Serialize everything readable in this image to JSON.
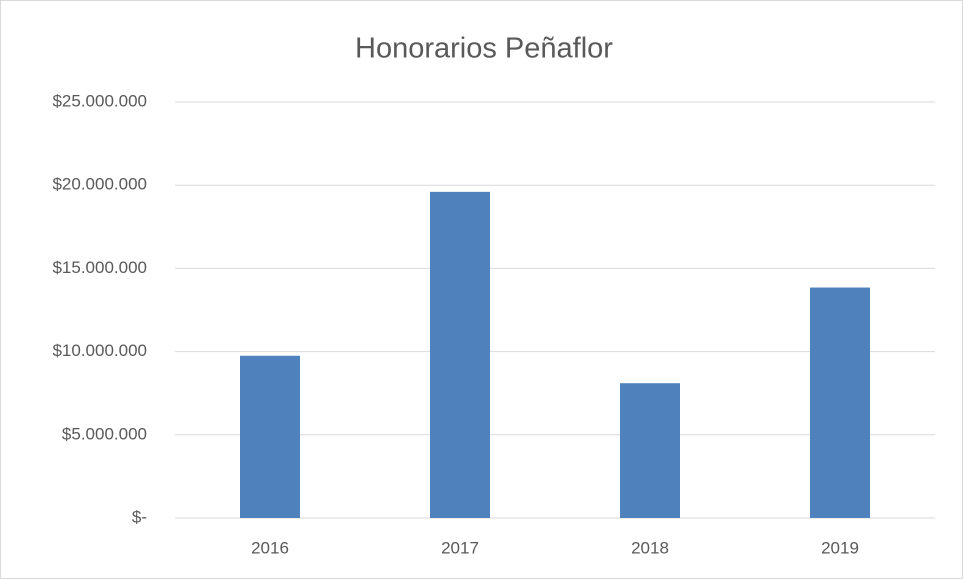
{
  "chart_data": {
    "type": "bar",
    "title": "Honorarios Peñaflor",
    "categories": [
      "2016",
      "2017",
      "2018",
      "2019"
    ],
    "values": [
      9750000,
      19600000,
      8100000,
      13850000
    ],
    "color": "#4f81bd",
    "ylim": [
      0,
      25000000
    ],
    "yticks": [
      {
        "value": 0,
        "label": "$-"
      },
      {
        "value": 5000000,
        "label": "$5.000.000"
      },
      {
        "value": 10000000,
        "label": "$10.000.000"
      },
      {
        "value": 15000000,
        "label": "$15.000.000"
      },
      {
        "value": 20000000,
        "label": "$20.000.000"
      },
      {
        "value": 25000000,
        "label": "$25.000.000"
      }
    ],
    "grid": true
  }
}
